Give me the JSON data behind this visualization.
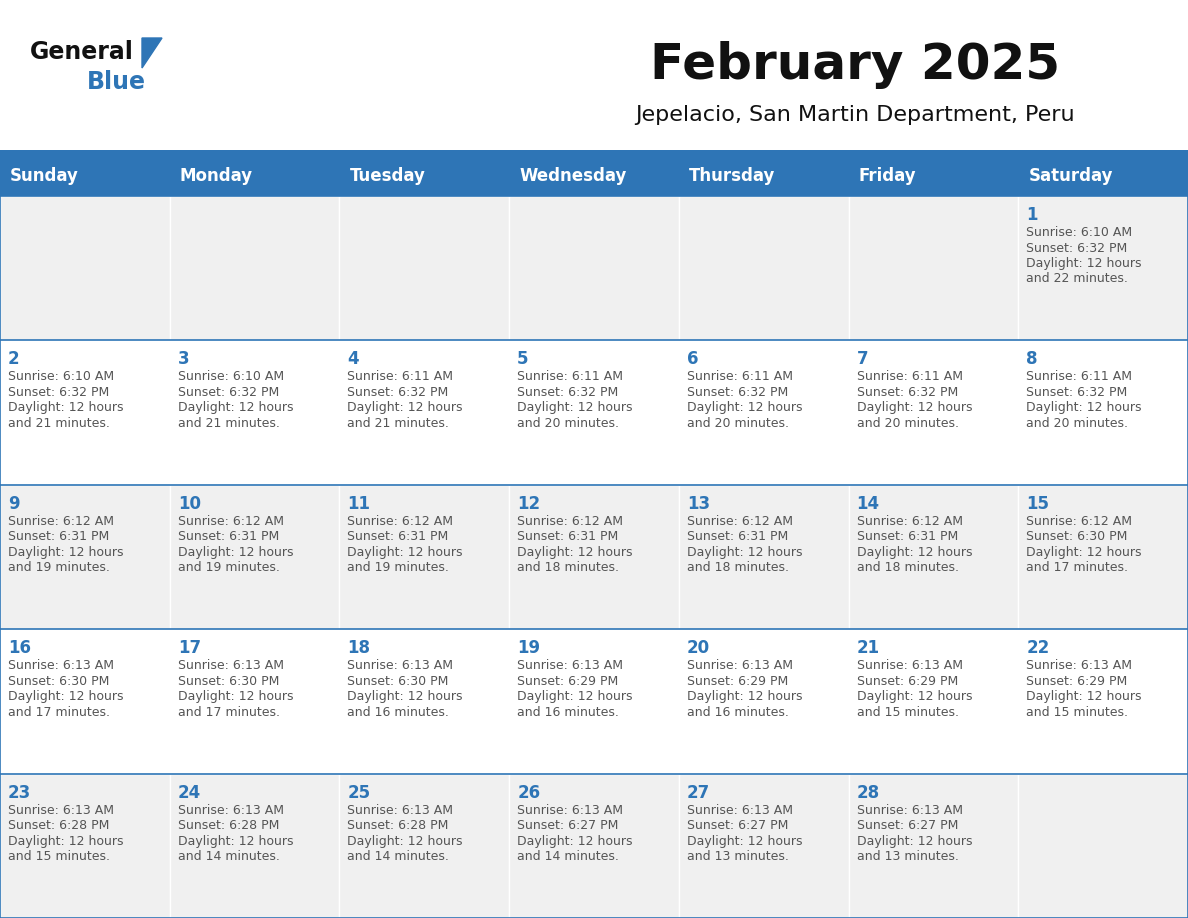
{
  "title": "February 2025",
  "subtitle": "Jepelacio, San Martin Department, Peru",
  "header_bg": "#2E75B6",
  "header_text_color": "#FFFFFF",
  "cell_bg_even": "#F0F0F0",
  "cell_bg_odd": "#FFFFFF",
  "text_color": "#555555",
  "day_number_color": "#2E75B6",
  "border_color": "#2E75B6",
  "days_of_week": [
    "Sunday",
    "Monday",
    "Tuesday",
    "Wednesday",
    "Thursday",
    "Friday",
    "Saturday"
  ],
  "weeks": [
    [
      null,
      null,
      null,
      null,
      null,
      null,
      1
    ],
    [
      2,
      3,
      4,
      5,
      6,
      7,
      8
    ],
    [
      9,
      10,
      11,
      12,
      13,
      14,
      15
    ],
    [
      16,
      17,
      18,
      19,
      20,
      21,
      22
    ],
    [
      23,
      24,
      25,
      26,
      27,
      28,
      null
    ]
  ],
  "cell_data": {
    "1": {
      "sunrise": "6:10 AM",
      "sunset": "6:32 PM",
      "daylight_hours": 12,
      "daylight_minutes": 22
    },
    "2": {
      "sunrise": "6:10 AM",
      "sunset": "6:32 PM",
      "daylight_hours": 12,
      "daylight_minutes": 21
    },
    "3": {
      "sunrise": "6:10 AM",
      "sunset": "6:32 PM",
      "daylight_hours": 12,
      "daylight_minutes": 21
    },
    "4": {
      "sunrise": "6:11 AM",
      "sunset": "6:32 PM",
      "daylight_hours": 12,
      "daylight_minutes": 21
    },
    "5": {
      "sunrise": "6:11 AM",
      "sunset": "6:32 PM",
      "daylight_hours": 12,
      "daylight_minutes": 20
    },
    "6": {
      "sunrise": "6:11 AM",
      "sunset": "6:32 PM",
      "daylight_hours": 12,
      "daylight_minutes": 20
    },
    "7": {
      "sunrise": "6:11 AM",
      "sunset": "6:32 PM",
      "daylight_hours": 12,
      "daylight_minutes": 20
    },
    "8": {
      "sunrise": "6:11 AM",
      "sunset": "6:32 PM",
      "daylight_hours": 12,
      "daylight_minutes": 20
    },
    "9": {
      "sunrise": "6:12 AM",
      "sunset": "6:31 PM",
      "daylight_hours": 12,
      "daylight_minutes": 19
    },
    "10": {
      "sunrise": "6:12 AM",
      "sunset": "6:31 PM",
      "daylight_hours": 12,
      "daylight_minutes": 19
    },
    "11": {
      "sunrise": "6:12 AM",
      "sunset": "6:31 PM",
      "daylight_hours": 12,
      "daylight_minutes": 19
    },
    "12": {
      "sunrise": "6:12 AM",
      "sunset": "6:31 PM",
      "daylight_hours": 12,
      "daylight_minutes": 18
    },
    "13": {
      "sunrise": "6:12 AM",
      "sunset": "6:31 PM",
      "daylight_hours": 12,
      "daylight_minutes": 18
    },
    "14": {
      "sunrise": "6:12 AM",
      "sunset": "6:31 PM",
      "daylight_hours": 12,
      "daylight_minutes": 18
    },
    "15": {
      "sunrise": "6:12 AM",
      "sunset": "6:30 PM",
      "daylight_hours": 12,
      "daylight_minutes": 17
    },
    "16": {
      "sunrise": "6:13 AM",
      "sunset": "6:30 PM",
      "daylight_hours": 12,
      "daylight_minutes": 17
    },
    "17": {
      "sunrise": "6:13 AM",
      "sunset": "6:30 PM",
      "daylight_hours": 12,
      "daylight_minutes": 17
    },
    "18": {
      "sunrise": "6:13 AM",
      "sunset": "6:30 PM",
      "daylight_hours": 12,
      "daylight_minutes": 16
    },
    "19": {
      "sunrise": "6:13 AM",
      "sunset": "6:29 PM",
      "daylight_hours": 12,
      "daylight_minutes": 16
    },
    "20": {
      "sunrise": "6:13 AM",
      "sunset": "6:29 PM",
      "daylight_hours": 12,
      "daylight_minutes": 16
    },
    "21": {
      "sunrise": "6:13 AM",
      "sunset": "6:29 PM",
      "daylight_hours": 12,
      "daylight_minutes": 15
    },
    "22": {
      "sunrise": "6:13 AM",
      "sunset": "6:29 PM",
      "daylight_hours": 12,
      "daylight_minutes": 15
    },
    "23": {
      "sunrise": "6:13 AM",
      "sunset": "6:28 PM",
      "daylight_hours": 12,
      "daylight_minutes": 15
    },
    "24": {
      "sunrise": "6:13 AM",
      "sunset": "6:28 PM",
      "daylight_hours": 12,
      "daylight_minutes": 14
    },
    "25": {
      "sunrise": "6:13 AM",
      "sunset": "6:28 PM",
      "daylight_hours": 12,
      "daylight_minutes": 14
    },
    "26": {
      "sunrise": "6:13 AM",
      "sunset": "6:27 PM",
      "daylight_hours": 12,
      "daylight_minutes": 14
    },
    "27": {
      "sunrise": "6:13 AM",
      "sunset": "6:27 PM",
      "daylight_hours": 12,
      "daylight_minutes": 13
    },
    "28": {
      "sunrise": "6:13 AM",
      "sunset": "6:27 PM",
      "daylight_hours": 12,
      "daylight_minutes": 13
    }
  },
  "logo_text1": "General",
  "logo_text2": "Blue",
  "logo_triangle_color": "#2E75B6",
  "title_fontsize": 36,
  "subtitle_fontsize": 16,
  "header_fontsize": 12,
  "day_num_fontsize": 12,
  "cell_text_fontsize": 9
}
